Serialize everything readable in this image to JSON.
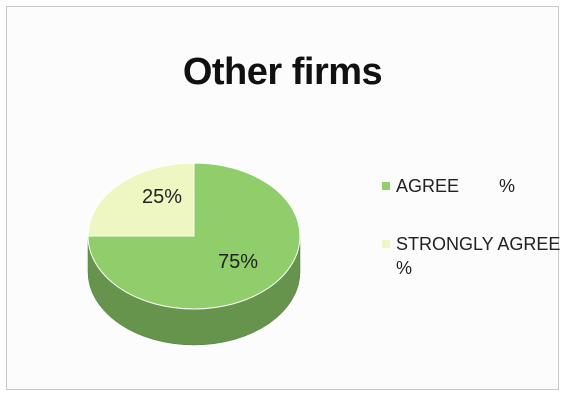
{
  "chart_data": {
    "type": "pie",
    "title": "Other firms",
    "slices": [
      {
        "label": "AGREE        %",
        "value": 75,
        "data_label": "75%",
        "color": "#8fce6a"
      },
      {
        "label": "STRONGLY AGREE\n%",
        "value": 25,
        "data_label": "25%",
        "color": "#eef6c2"
      }
    ],
    "legend_position": "right",
    "style": "3d"
  }
}
